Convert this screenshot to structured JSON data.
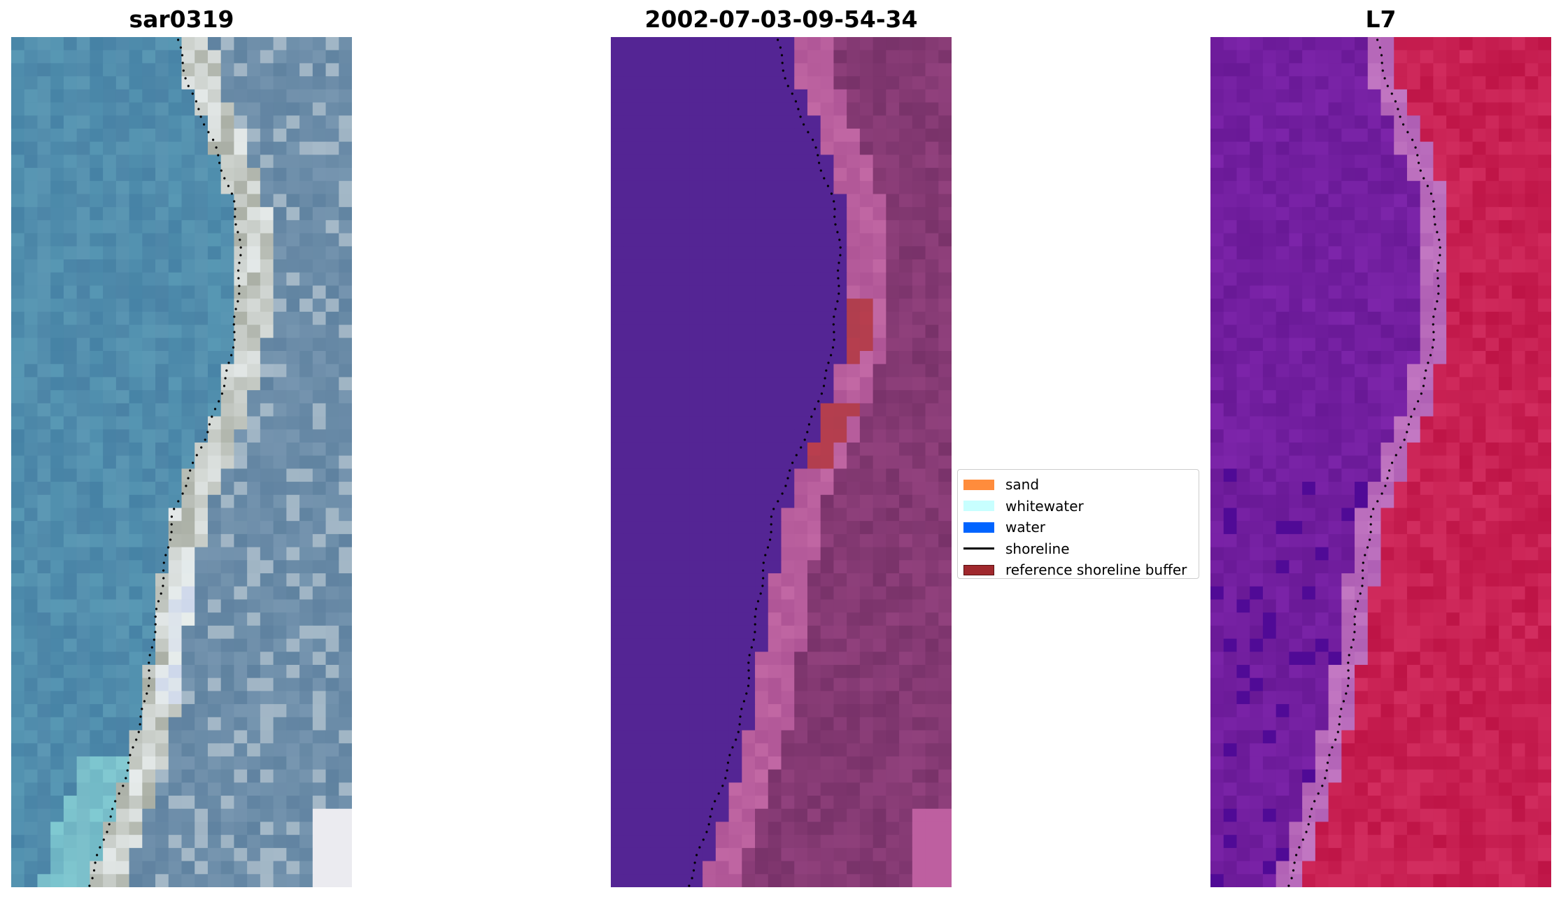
{
  "panels": [
    {
      "title": "sar0319"
    },
    {
      "title": "2002-07-03-09-54-34"
    },
    {
      "title": "L7"
    }
  ],
  "legend": {
    "items": [
      {
        "label": "sand",
        "color": "#ff8c3c",
        "kind": "patch"
      },
      {
        "label": "whitewater",
        "color": "#c8ffff",
        "kind": "patch"
      },
      {
        "label": "water",
        "color": "#0064ff",
        "kind": "patch"
      },
      {
        "label": "shoreline",
        "color": "#000000",
        "kind": "line"
      },
      {
        "label": "reference shoreline buffer",
        "color": "#a0282d",
        "kind": "patch",
        "edge": "#5a1010"
      }
    ]
  },
  "colors": {
    "rgb_water": "#4a86a8",
    "rgb_land": "#6a8ca8",
    "rgb_sand": "#dcdcd0",
    "class_water": "#542594",
    "class_land": "#7e3a70",
    "class_beach": "#b45a9a",
    "class_buffer": "#b0404e",
    "ndwi_water": "#6a1a9a",
    "ndwi_land": "#c22050",
    "ndwi_transition": "#b068b8"
  }
}
